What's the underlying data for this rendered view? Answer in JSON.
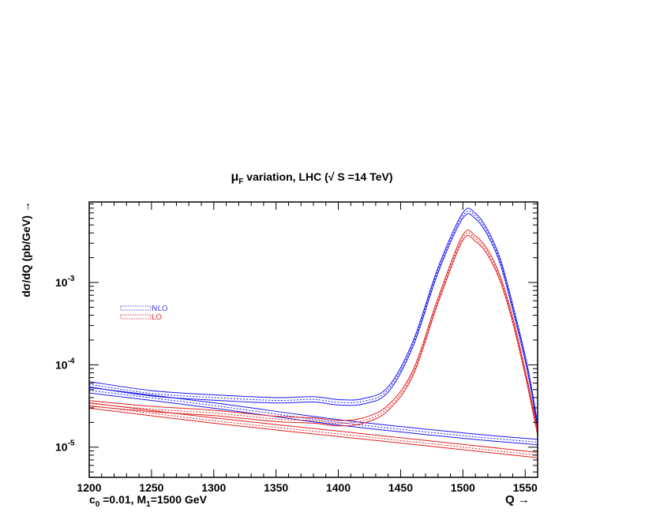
{
  "chart_data": {
    "type": "line",
    "title": {
      "mu": "μ",
      "mu_sub": "F",
      "rest": " variation,  LHC (√ S =14 TeV)"
    },
    "ylabel": "dσ/dQ (pb/GeV) →",
    "xlabel": "Q →",
    "annotation": {
      "c": "c",
      "c_sub": "0",
      "mid": " =0.01,  M",
      "m_sub": "1",
      "end": "=1500 GeV"
    },
    "xlim": [
      1200,
      1560
    ],
    "ylim": [
      4.3e-06,
      0.0095
    ],
    "yscale": "log",
    "x_ticks": [
      {
        "value": 1200,
        "label": "1200"
      },
      {
        "value": 1250,
        "label": "1250"
      },
      {
        "value": 1300,
        "label": "1300"
      },
      {
        "value": 1350,
        "label": "1350"
      },
      {
        "value": 1400,
        "label": "1400"
      },
      {
        "value": 1450,
        "label": "1450"
      },
      {
        "value": 1500,
        "label": "1500"
      },
      {
        "value": 1550,
        "label": "1550"
      }
    ],
    "y_ticks": [
      {
        "value": 1e-05,
        "base": "10",
        "exp": "-5"
      },
      {
        "value": 0.0001,
        "base": "10",
        "exp": "-4"
      },
      {
        "value": 0.001,
        "base": "10",
        "exp": "-3"
      }
    ],
    "legend": {
      "position": "left",
      "entries": [
        {
          "label": "NLO",
          "color": "#5050e0"
        },
        {
          "label": "LO",
          "color": "#e04040"
        }
      ]
    },
    "colors": {
      "nlo": "#1a1aee",
      "lo": "#e02020"
    },
    "series": [
      {
        "group": "nlo",
        "band": true,
        "x": [
          1200,
          1250,
          1300,
          1350,
          1380,
          1400,
          1420,
          1440,
          1460,
          1480,
          1500,
          1510,
          1520,
          1530,
          1540,
          1550,
          1555,
          1560
        ],
        "y": [
          5.8e-05,
          4.5e-05,
          4e-05,
          3.7e-05,
          3.8e-05,
          3.5e-05,
          3.6e-05,
          5e-05,
          0.00018,
          0.0014,
          0.0065,
          0.0064,
          0.004,
          0.0018,
          0.0005,
          0.00012,
          5e-05,
          1.8e-05
        ]
      },
      {
        "group": "nlo",
        "band": true,
        "x": [
          1200,
          1300,
          1400,
          1500,
          1560
        ],
        "y": [
          4.9e-05,
          3.2e-05,
          2e-05,
          1.38e-05,
          1.15e-05
        ]
      },
      {
        "group": "lo",
        "band": true,
        "x": [
          1200,
          1250,
          1300,
          1350,
          1380,
          1400,
          1420,
          1440,
          1460,
          1480,
          1500,
          1510,
          1520,
          1530,
          1540,
          1550,
          1555,
          1560
        ],
        "y": [
          3.4e-05,
          2.9e-05,
          2.6e-05,
          2.2e-05,
          2.1e-05,
          1.95e-05,
          2.1e-05,
          3e-05,
          8e-05,
          0.0006,
          0.0035,
          0.0034,
          0.0023,
          0.0011,
          0.00035,
          8e-05,
          3.5e-05,
          1.5e-05
        ]
      },
      {
        "group": "lo",
        "band": true,
        "x": [
          1200,
          1300,
          1400,
          1500,
          1560
        ],
        "y": [
          3.2e-05,
          2.1e-05,
          1.45e-05,
          1e-05,
          8e-06
        ]
      }
    ]
  }
}
